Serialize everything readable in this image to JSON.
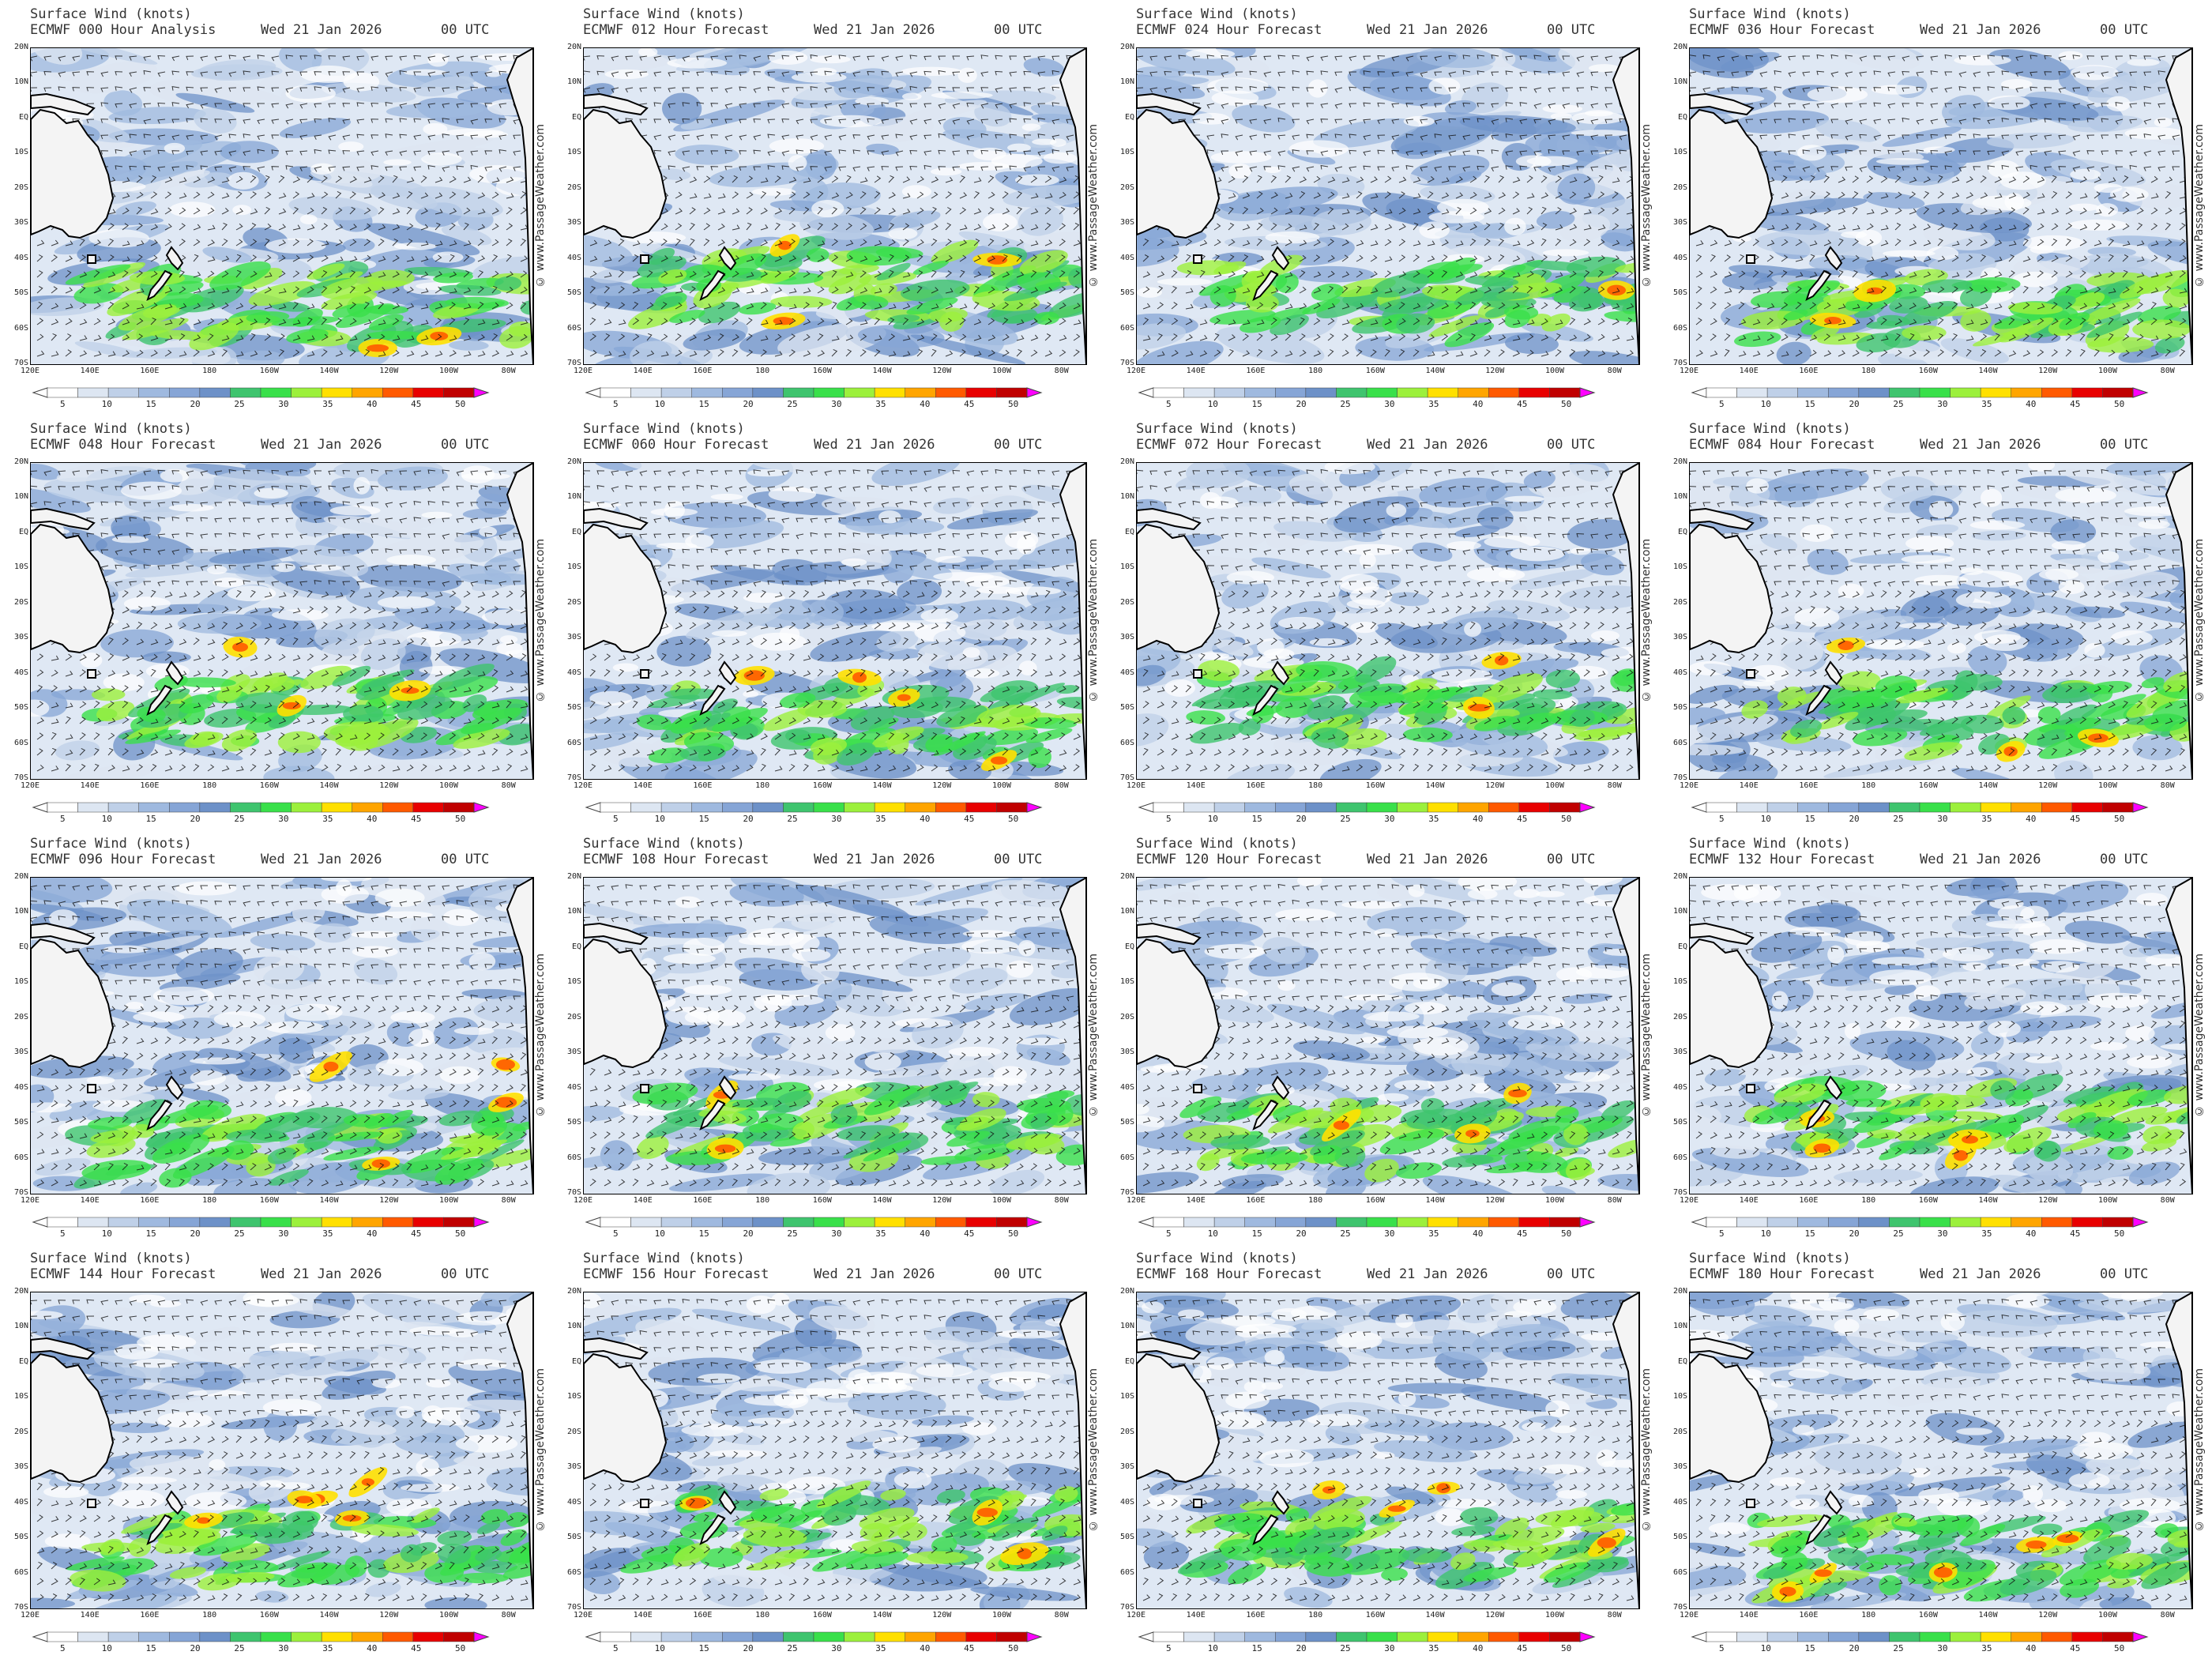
{
  "colors": {
    "scale": [
      "#ffffff",
      "#dde6f2",
      "#bfd0e8",
      "#9fb9df",
      "#86a5d6",
      "#6d91c8",
      "#3fc46e",
      "#39e04a",
      "#9cf03c",
      "#ffe000",
      "#ffa500",
      "#ff5a00",
      "#e80000",
      "#c00000",
      "#ff00ff"
    ],
    "coast": "#000000"
  },
  "colorbar": {
    "ticks": [
      "5",
      "10",
      "15",
      "20",
      "25",
      "30",
      "35",
      "40",
      "45",
      "50"
    ]
  },
  "axes": {
    "y_labels": [
      "20N",
      "10N",
      "EQ",
      "10S",
      "20S",
      "30S",
      "40S",
      "50S",
      "60S",
      "70S"
    ],
    "x_labels": [
      "120E",
      "140E",
      "160E",
      "180",
      "160W",
      "140W",
      "120W",
      "100W",
      "80W"
    ]
  },
  "credit": "© www.PassageWeather.com",
  "panels": [
    {
      "line1": "Surface Wind (knots)",
      "line2": "ECMWF 000 Hour Analysis",
      "date": "Wed 21 Jan 2026",
      "utc": "00 UTC"
    },
    {
      "line1": "Surface Wind (knots)",
      "line2": "ECMWF 012 Hour Forecast",
      "date": "Wed 21 Jan 2026",
      "utc": "00 UTC"
    },
    {
      "line1": "Surface Wind (knots)",
      "line2": "ECMWF 024 Hour Forecast",
      "date": "Wed 21 Jan 2026",
      "utc": "00 UTC"
    },
    {
      "line1": "Surface Wind (knots)",
      "line2": "ECMWF 036 Hour Forecast",
      "date": "Wed 21 Jan 2026",
      "utc": "00 UTC"
    },
    {
      "line1": "Surface Wind (knots)",
      "line2": "ECMWF 048 Hour Forecast",
      "date": "Wed 21 Jan 2026",
      "utc": "00 UTC"
    },
    {
      "line1": "Surface Wind (knots)",
      "line2": "ECMWF 060 Hour Forecast",
      "date": "Wed 21 Jan 2026",
      "utc": "00 UTC"
    },
    {
      "line1": "Surface Wind (knots)",
      "line2": "ECMWF 072 Hour Forecast",
      "date": "Wed 21 Jan 2026",
      "utc": "00 UTC"
    },
    {
      "line1": "Surface Wind (knots)",
      "line2": "ECMWF 084 Hour Forecast",
      "date": "Wed 21 Jan 2026",
      "utc": "00 UTC"
    },
    {
      "line1": "Surface Wind (knots)",
      "line2": "ECMWF 096 Hour Forecast",
      "date": "Wed 21 Jan 2026",
      "utc": "00 UTC"
    },
    {
      "line1": "Surface Wind (knots)",
      "line2": "ECMWF 108 Hour Forecast",
      "date": "Wed 21 Jan 2026",
      "utc": "00 UTC"
    },
    {
      "line1": "Surface Wind (knots)",
      "line2": "ECMWF 120 Hour Forecast",
      "date": "Wed 21 Jan 2026",
      "utc": "00 UTC"
    },
    {
      "line1": "Surface Wind (knots)",
      "line2": "ECMWF 132 Hour Forecast",
      "date": "Wed 21 Jan 2026",
      "utc": "00 UTC"
    },
    {
      "line1": "Surface Wind (knots)",
      "line2": "ECMWF 144 Hour Forecast",
      "date": "Wed 21 Jan 2026",
      "utc": "00 UTC"
    },
    {
      "line1": "Surface Wind (knots)",
      "line2": "ECMWF 156 Hour Forecast",
      "date": "Wed 21 Jan 2026",
      "utc": "00 UTC"
    },
    {
      "line1": "Surface Wind (knots)",
      "line2": "ECMWF 168 Hour Forecast",
      "date": "Wed 21 Jan 2026",
      "utc": "00 UTC"
    },
    {
      "line1": "Surface Wind (knots)",
      "line2": "ECMWF 180 Hour Forecast",
      "date": "Wed 21 Jan 2026",
      "utc": "00 UTC"
    }
  ]
}
